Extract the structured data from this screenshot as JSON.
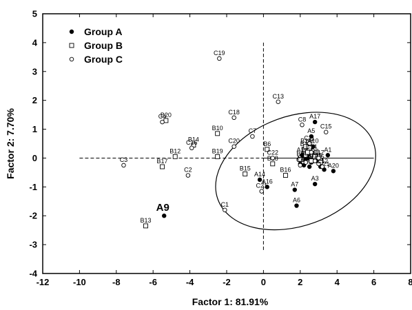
{
  "chart_data": {
    "type": "scatter",
    "xlabel": "Factor 1: 81.91%",
    "ylabel": "Factor 2:  7.70%",
    "xlim": [
      -12,
      8
    ],
    "ylim": [
      -4,
      5
    ],
    "xticks": [
      "-12",
      "-10",
      "-8",
      "-6",
      "-4",
      "-2",
      "0",
      "2",
      "4",
      "6",
      "8"
    ],
    "yticks": [
      "-4",
      "-3",
      "-2",
      "-1",
      "0",
      "1",
      "2",
      "3",
      "4",
      "5"
    ],
    "legend_position": "top-left",
    "series": [
      {
        "name": "Group A",
        "marker": "filled-circle",
        "points": [
          {
            "label": "A1",
            "x": 3.5,
            "y": 0.1
          },
          {
            "label": "A2",
            "x": 2.0,
            "y": -0.2
          },
          {
            "label": "A3",
            "x": 2.8,
            "y": -0.9
          },
          {
            "label": "A4",
            "x": 3.1,
            "y": -0.3
          },
          {
            "label": "A5",
            "x": 2.6,
            "y": 0.75
          },
          {
            "label": "A6",
            "x": 1.8,
            "y": -1.65
          },
          {
            "label": "A7",
            "x": 1.7,
            "y": -1.1
          },
          {
            "label": "A8",
            "x": 2.6,
            "y": -0.15
          },
          {
            "label": "A9",
            "x": -5.4,
            "y": -2.0
          },
          {
            "label": "A10",
            "x": 2.7,
            "y": 0.4
          },
          {
            "label": "A11",
            "x": 2.3,
            "y": -0.05
          },
          {
            "label": "A12",
            "x": 2.1,
            "y": 0.1
          },
          {
            "label": "A13",
            "x": 2.5,
            "y": -0.3
          },
          {
            "label": "A14",
            "x": -0.2,
            "y": -0.75
          },
          {
            "label": "A15",
            "x": 2.9,
            "y": -0.1
          },
          {
            "label": "A16",
            "x": 0.2,
            "y": -1.0
          },
          {
            "label": "A17",
            "x": 2.8,
            "y": 1.25
          },
          {
            "label": "A18",
            "x": 2.4,
            "y": 0.0
          },
          {
            "label": "A19",
            "x": 2.2,
            "y": -0.25
          },
          {
            "label": "A20",
            "x": 3.8,
            "y": -0.45
          },
          {
            "label": "A21",
            "x": 3.3,
            "y": -0.4
          }
        ]
      },
      {
        "name": "Group B",
        "marker": "open-square",
        "points": [
          {
            "label": "B1",
            "x": 2.2,
            "y": 0.3
          },
          {
            "label": "B2",
            "x": 2.3,
            "y": 0.1
          },
          {
            "label": "B3",
            "x": 2.6,
            "y": -0.1
          },
          {
            "label": "B4",
            "x": 2.4,
            "y": 0.2
          },
          {
            "label": "B5",
            "x": 3.1,
            "y": -0.15
          },
          {
            "label": "B6",
            "x": 0.2,
            "y": 0.3
          },
          {
            "label": "B7",
            "x": 2.5,
            "y": 0.35
          },
          {
            "label": "B8",
            "x": 2.8,
            "y": 0.05
          },
          {
            "label": "B9",
            "x": 2.0,
            "y": -0.05
          },
          {
            "label": "B10",
            "x": -2.5,
            "y": 0.85
          },
          {
            "label": "B11",
            "x": 2.3,
            "y": 0.4
          },
          {
            "label": "B12",
            "x": -4.8,
            "y": 0.05
          },
          {
            "label": "B13",
            "x": -6.4,
            "y": -2.35
          },
          {
            "label": "B14",
            "x": -3.8,
            "y": 0.45
          },
          {
            "label": "B15",
            "x": -1.0,
            "y": -0.55
          },
          {
            "label": "B16",
            "x": 1.2,
            "y": -0.6
          },
          {
            "label": "B17",
            "x": -5.5,
            "y": -0.3
          },
          {
            "label": "B18",
            "x": 0.5,
            "y": -0.2
          },
          {
            "label": "B19",
            "x": -2.5,
            "y": 0.05
          },
          {
            "label": "B20",
            "x": -5.3,
            "y": 1.3
          }
        ]
      },
      {
        "name": "Group C",
        "marker": "open-circle",
        "points": [
          {
            "label": "C1",
            "x": -2.1,
            "y": -1.8
          },
          {
            "label": "C2",
            "x": -4.1,
            "y": -0.6
          },
          {
            "label": "C3",
            "x": -7.6,
            "y": -0.25
          },
          {
            "label": "C4",
            "x": -5.5,
            "y": 1.25
          },
          {
            "label": "C5",
            "x": 3.0,
            "y": -0.2
          },
          {
            "label": "C6",
            "x": 2.0,
            "y": -0.25
          },
          {
            "label": "C7",
            "x": -0.6,
            "y": 0.75
          },
          {
            "label": "C8",
            "x": 2.1,
            "y": 1.15
          },
          {
            "label": "C9",
            "x": 2.3,
            "y": -0.15
          },
          {
            "label": "C10",
            "x": 2.8,
            "y": -0.1
          },
          {
            "label": "C11",
            "x": 2.5,
            "y": 0.5
          },
          {
            "label": "C12",
            "x": 3.2,
            "y": -0.3
          },
          {
            "label": "C13",
            "x": 0.8,
            "y": 1.95
          },
          {
            "label": "C14",
            "x": 2.6,
            "y": 0.2
          },
          {
            "label": "C15",
            "x": 3.4,
            "y": 0.9
          },
          {
            "label": "C16",
            "x": -3.9,
            "y": 0.35
          },
          {
            "label": "C17",
            "x": 3.0,
            "y": 0.0
          },
          {
            "label": "C18",
            "x": -1.6,
            "y": 1.4
          },
          {
            "label": "C19",
            "x": -2.4,
            "y": 3.45
          },
          {
            "label": "C20",
            "x": -1.6,
            "y": 0.4
          },
          {
            "label": "C21",
            "x": -0.1,
            "y": -1.15
          },
          {
            "label": "C22",
            "x": 0.5,
            "y": 0.0
          }
        ]
      }
    ],
    "ellipse": {
      "cx": 1.75,
      "cy": -0.45,
      "rx": 4.5,
      "ry": 1.9,
      "angle_deg": 20
    }
  }
}
